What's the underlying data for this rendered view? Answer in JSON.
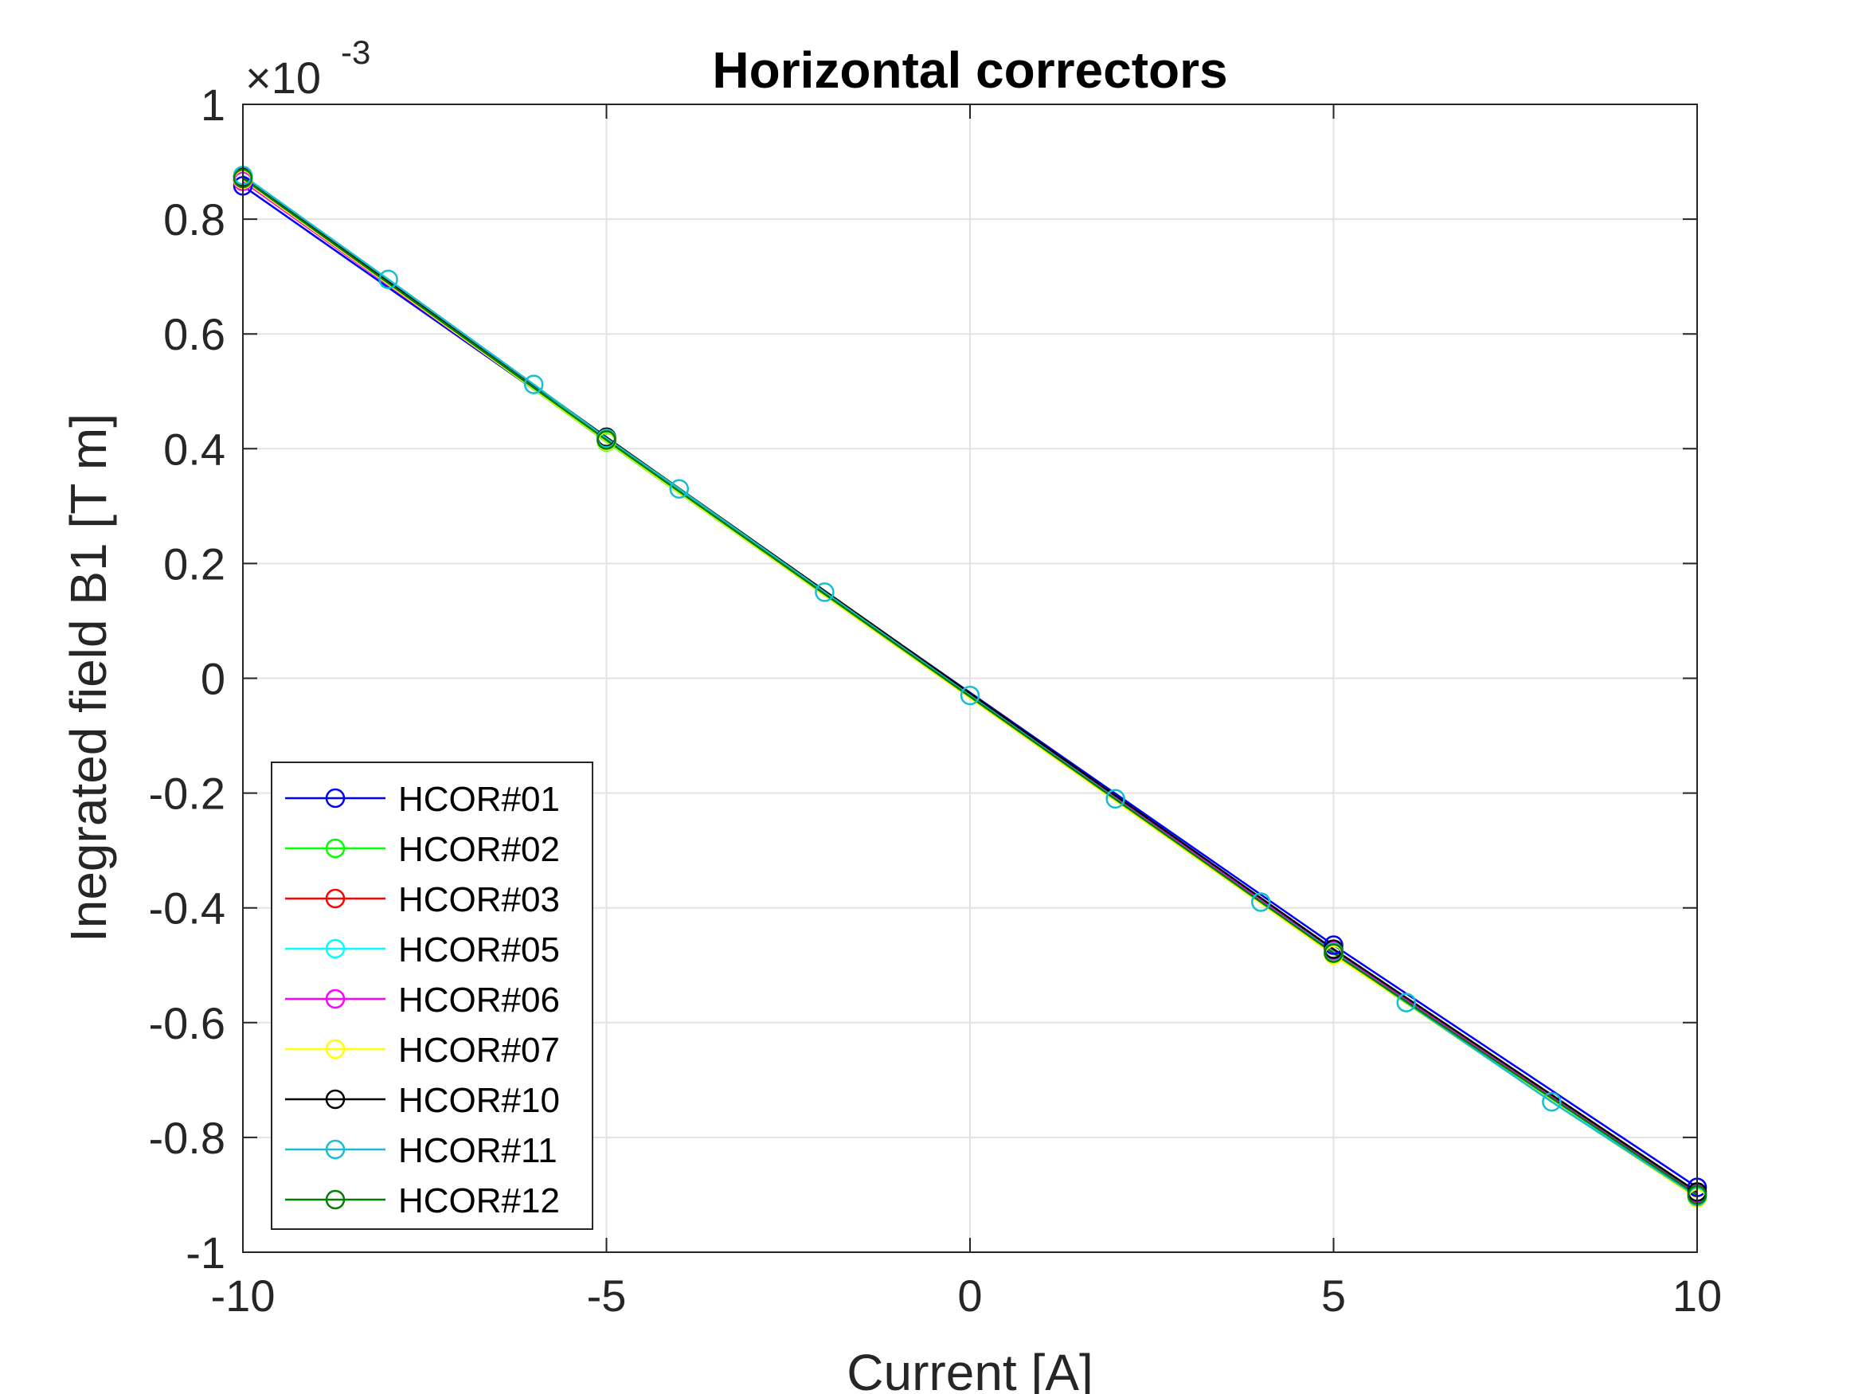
{
  "chart_data": {
    "type": "line",
    "title": "Horizontal correctors",
    "xlabel": "Current [A]",
    "ylabel": "Inegrated field B1 [T m]",
    "y_exponent_label": "×10",
    "y_exponent_power": "-3",
    "xlim": [
      -10,
      10
    ],
    "ylim": [
      -1,
      1
    ],
    "xticks": [
      -10,
      -5,
      0,
      5,
      10
    ],
    "xtick_labels": [
      "-10",
      "-5",
      "0",
      "5",
      "10"
    ],
    "yticks": [
      -1,
      -0.8,
      -0.6,
      -0.4,
      -0.2,
      0,
      0.2,
      0.4,
      0.6,
      0.8,
      1
    ],
    "ytick_labels": [
      "-1",
      "-0.8",
      "-0.6",
      "-0.4",
      "-0.2",
      "0",
      "0.2",
      "0.4",
      "0.6",
      "0.8",
      "1"
    ],
    "grid": true,
    "legend_position": "bottom-left",
    "y_unit_scale": "1e-3",
    "series": [
      {
        "name": "HCOR#01",
        "color": "#0000ff",
        "x": [
          -10,
          -5,
          5,
          10
        ],
        "y": [
          0.858,
          0.415,
          -0.465,
          -0.887
        ]
      },
      {
        "name": "HCOR#02",
        "color": "#00ff00",
        "x": [
          -10,
          -5,
          5,
          10
        ],
        "y": [
          0.87,
          0.412,
          -0.48,
          -0.905
        ]
      },
      {
        "name": "HCOR#03",
        "color": "#ff0000",
        "x": [
          -10,
          -5,
          5,
          10
        ],
        "y": [
          0.868,
          0.416,
          -0.476,
          -0.9
        ]
      },
      {
        "name": "HCOR#05",
        "color": "#00ffff",
        "x": [
          -10,
          -5,
          5,
          10
        ],
        "y": [
          0.872,
          0.418,
          -0.478,
          -0.902
        ]
      },
      {
        "name": "HCOR#06",
        "color": "#ff00ff",
        "x": [
          -10,
          -5,
          5,
          10
        ],
        "y": [
          0.866,
          0.414,
          -0.474,
          -0.898
        ]
      },
      {
        "name": "HCOR#07",
        "color": "#ffff00",
        "x": [
          -10,
          -5,
          5,
          10
        ],
        "y": [
          0.869,
          0.413,
          -0.482,
          -0.906
        ]
      },
      {
        "name": "HCOR#10",
        "color": "#000000",
        "x": [
          -10,
          -5,
          5,
          10
        ],
        "y": [
          0.874,
          0.42,
          -0.472,
          -0.895
        ]
      },
      {
        "name": "HCOR#11",
        "color": "#17becf",
        "x": [
          -10,
          -8,
          -6,
          -5,
          -4,
          -2,
          0,
          2,
          4,
          5,
          6,
          8,
          10
        ],
        "y": [
          0.876,
          0.695,
          0.512,
          0.418,
          0.33,
          0.15,
          -0.03,
          -0.21,
          -0.39,
          -0.477,
          -0.565,
          -0.738,
          -0.903
        ]
      },
      {
        "name": "HCOR#12",
        "color": "#008000",
        "x": [
          -10,
          -5,
          5,
          10
        ],
        "y": [
          0.871,
          0.415,
          -0.479,
          -0.9
        ]
      }
    ]
  }
}
